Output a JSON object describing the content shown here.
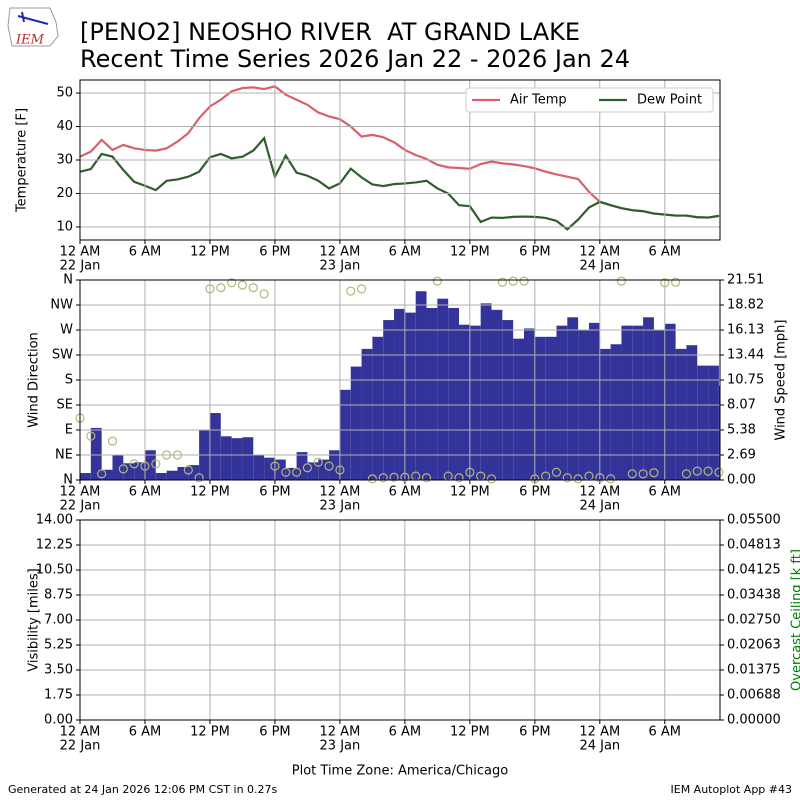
{
  "header": {
    "logo_text": "IEM",
    "title_line1": "[PENO2] NEOSHO RIVER  AT GRAND LAKE",
    "title_line2": "Recent Time Series 2026 Jan 22 - 2026 Jan 24"
  },
  "chart_data": [
    {
      "type": "line",
      "ylabel": "Temperature [F]",
      "grid": true,
      "legend": "upper right",
      "xlim": [
        0,
        59.1
      ],
      "ylim": [
        6.1,
        53.9
      ],
      "yticks": [
        10,
        20,
        30,
        40,
        50
      ],
      "xticks": [
        {
          "value": 0,
          "label": "12 AM"
        },
        {
          "value": 6,
          "label": "6 AM"
        },
        {
          "value": 12,
          "label": "12 PM"
        },
        {
          "value": 18,
          "label": "6 PM"
        },
        {
          "value": 24,
          "label": "12 AM"
        },
        {
          "value": 30,
          "label": "6 AM"
        },
        {
          "value": 36,
          "label": "12 PM"
        },
        {
          "value": 42,
          "label": "6 PM"
        },
        {
          "value": 48,
          "label": "12 AM"
        },
        {
          "value": 54,
          "label": "6 AM"
        }
      ],
      "xdates": [
        {
          "value": 0,
          "label": "22 Jan"
        },
        {
          "value": 24,
          "label": "23 Jan"
        },
        {
          "value": 48,
          "label": "24 Jan"
        }
      ],
      "x": [
        0,
        1,
        2,
        3,
        4,
        5,
        6,
        7,
        8,
        9,
        10,
        11,
        12,
        13,
        14,
        15,
        16,
        17,
        18,
        19,
        20,
        21,
        22,
        23,
        24,
        25,
        26,
        27,
        28,
        29,
        30,
        31,
        32,
        33,
        34,
        35,
        36,
        37,
        38,
        39,
        40,
        41,
        42,
        43,
        44,
        45,
        46,
        47,
        48,
        49,
        50,
        51,
        52,
        53,
        54,
        55,
        56,
        57,
        58,
        59
      ],
      "series": [
        {
          "name": "Air Temp",
          "color": "#d9606a",
          "values": [
            31,
            32.5,
            36,
            33,
            34.5,
            33.5,
            33,
            32.8,
            33.5,
            35.5,
            38,
            42.5,
            46,
            48,
            50.5,
            51.5,
            51.7,
            51.2,
            52,
            49.5,
            48,
            46.5,
            44.2,
            43,
            42.2,
            40,
            37,
            37.5,
            36.8,
            35.3,
            33,
            31.5,
            30.3,
            28.6,
            27.8,
            27.6,
            27.4,
            28.8,
            29.5,
            29,
            28.7,
            28.2,
            27.5,
            26.5,
            25.7,
            25,
            24.3,
            20.5,
            17.5,
            16.5,
            15.6,
            15,
            14.7,
            14,
            13.7,
            13.4,
            13.4,
            12.9,
            12.8,
            13.3
          ]
        },
        {
          "name": "Dew Point",
          "color": "#2e5e2e",
          "values": [
            26.5,
            27.3,
            31.8,
            31,
            27,
            23.5,
            22.3,
            21,
            23.8,
            24.2,
            25,
            26.5,
            30.8,
            31.8,
            30.5,
            31,
            32.8,
            36.5,
            25,
            31.3,
            26.2,
            25.3,
            23.8,
            21.5,
            23,
            27.4,
            24.8,
            22.7,
            22.2,
            22.8,
            23,
            23.3,
            23.8,
            21.5,
            20,
            16.5,
            16.2,
            11.5,
            12.8,
            12.7,
            13,
            13.1,
            13,
            12.7,
            11.8,
            9.3,
            12.2,
            15.8,
            17.5,
            16.5,
            15.6,
            15,
            14.7,
            14,
            13.7,
            13.4,
            13.4,
            12.9,
            12.8,
            13.3
          ]
        }
      ]
    },
    {
      "type": "bar",
      "ylabel": "Wind Direction",
      "y2label": "Wind Speed [mph]",
      "grid": true,
      "xlim": [
        0,
        59.1
      ],
      "ylim": [
        0,
        360
      ],
      "y2lim": [
        0,
        21.51
      ],
      "yticks": [
        {
          "value": 0,
          "label": "N"
        },
        {
          "value": 45,
          "label": "NE"
        },
        {
          "value": 90,
          "label": "E"
        },
        {
          "value": 135,
          "label": "SE"
        },
        {
          "value": 180,
          "label": "S"
        },
        {
          "value": 225,
          "label": "SW"
        },
        {
          "value": 270,
          "label": "W"
        },
        {
          "value": 315,
          "label": "NW"
        },
        {
          "value": 360,
          "label": "N"
        }
      ],
      "y2ticks": [
        {
          "value": 0,
          "label": "0.00"
        },
        2.69,
        5.38,
        8.07,
        10.75,
        13.44,
        16.13,
        18.82,
        21.51
      ],
      "xticks": [
        {
          "value": 0,
          "label": "12 AM"
        },
        {
          "value": 6,
          "label": "6 AM"
        },
        {
          "value": 12,
          "label": "12 PM"
        },
        {
          "value": 18,
          "label": "6 PM"
        },
        {
          "value": 24,
          "label": "12 AM"
        },
        {
          "value": 30,
          "label": "6 AM"
        },
        {
          "value": 36,
          "label": "12 PM"
        },
        {
          "value": 42,
          "label": "6 PM"
        },
        {
          "value": 48,
          "label": "12 AM"
        },
        {
          "value": 54,
          "label": "6 AM"
        }
      ],
      "xdates": [
        {
          "value": 0,
          "label": "22 Jan"
        },
        {
          "value": 24,
          "label": "23 Jan"
        },
        {
          "value": 48,
          "label": "24 Jan"
        }
      ],
      "x": [
        0,
        1,
        2,
        3,
        4,
        5,
        6,
        7,
        8,
        9,
        10,
        11,
        12,
        13,
        14,
        15,
        16,
        17,
        18,
        19,
        20,
        21,
        22,
        23,
        24,
        25,
        26,
        27,
        28,
        29,
        30,
        31,
        32,
        33,
        34,
        35,
        36,
        37,
        38,
        39,
        40,
        41,
        42,
        43,
        44,
        45,
        46,
        47,
        48,
        49,
        50,
        51,
        52,
        53,
        54,
        55,
        56,
        57,
        58,
        59
      ],
      "series": [
        {
          "type": "bar",
          "axis": "y2",
          "color": "#333399",
          "values": [
            0.75,
            5.6,
            1.1,
            2.7,
            1.8,
            1.9,
            3.2,
            0.75,
            1.0,
            1.4,
            1.6,
            5.4,
            7.2,
            4.7,
            4.5,
            4.6,
            2.7,
            2.4,
            2.2,
            1.3,
            3.0,
            1.9,
            2.2,
            3.2,
            9.7,
            12.2,
            14.1,
            15.4,
            17.2,
            18.4,
            18.0,
            20.3,
            18.5,
            19.5,
            18.5,
            16.7,
            16.6,
            19.0,
            18.3,
            17.2,
            15.2,
            16.3,
            15.4,
            15.4,
            16.6,
            17.5,
            16.1,
            16.9,
            14.1,
            14.6,
            16.6,
            16.6,
            17.5,
            16.1,
            16.8,
            14.1,
            14.5,
            12.3,
            12.3,
            10.1
          ]
        },
        {
          "type": "scatter",
          "axis": "y",
          "color": "#b5b57a",
          "values": [
            111.6,
            79,
            11,
            70,
            20,
            29,
            25,
            29,
            45,
            45,
            18,
            4,
            344,
            346,
            355,
            351,
            346,
            335,
            25,
            14,
            14,
            22,
            32,
            25,
            18,
            340,
            344,
            2,
            4,
            5,
            5,
            7,
            4,
            358,
            7,
            4,
            14,
            7,
            2,
            356,
            358,
            358,
            2,
            7,
            14,
            4,
            2,
            7,
            4,
            2,
            358,
            11,
            11,
            13,
            355,
            356,
            11,
            16,
            16,
            14
          ]
        }
      ]
    },
    {
      "type": "line",
      "ylabel": "Visibility [miles]",
      "y2label": "Overcast Ceiling [k ft]",
      "y2label_color": "#008000",
      "grid": true,
      "xlabel": "Plot Time Zone: America/Chicago",
      "xlim": [
        0,
        59.1
      ],
      "ylim": [
        0,
        14
      ],
      "y2lim": [
        0,
        0.055
      ],
      "yticks": [
        {
          "value": 0,
          "label": "0.00"
        },
        1.75,
        {
          "value": 3.5,
          "label": "3.50"
        },
        5.25,
        {
          "value": 7,
          "label": "7.00"
        },
        8.75,
        {
          "value": 10.5,
          "label": "10.50"
        },
        12.25,
        {
          "value": 14,
          "label": "14.00"
        }
      ],
      "y2ticks": [
        {
          "value": 0,
          "label": "0.00000"
        },
        0.00688,
        0.01375,
        0.02063,
        {
          "value": 0.0275,
          "label": "0.02750"
        },
        0.03438,
        0.04125,
        0.04813,
        {
          "value": 0.055,
          "label": "0.05500"
        }
      ],
      "xticks": [
        {
          "value": 0,
          "label": "12 AM"
        },
        {
          "value": 6,
          "label": "6 AM"
        },
        {
          "value": 12,
          "label": "12 PM"
        },
        {
          "value": 18,
          "label": "6 PM"
        },
        {
          "value": 24,
          "label": "12 AM"
        },
        {
          "value": 30,
          "label": "6 AM"
        },
        {
          "value": 36,
          "label": "12 PM"
        },
        {
          "value": 42,
          "label": "6 PM"
        },
        {
          "value": 48,
          "label": "12 AM"
        },
        {
          "value": 54,
          "label": "6 AM"
        }
      ],
      "xdates": [
        {
          "value": 0,
          "label": "22 Jan"
        },
        {
          "value": 24,
          "label": "23 Jan"
        },
        {
          "value": 48,
          "label": "24 Jan"
        }
      ]
    }
  ],
  "footer": {
    "left": "Generated at 24 Jan 2026 12:06 PM CST in 0.27s",
    "right": "IEM Autoplot App #43"
  }
}
